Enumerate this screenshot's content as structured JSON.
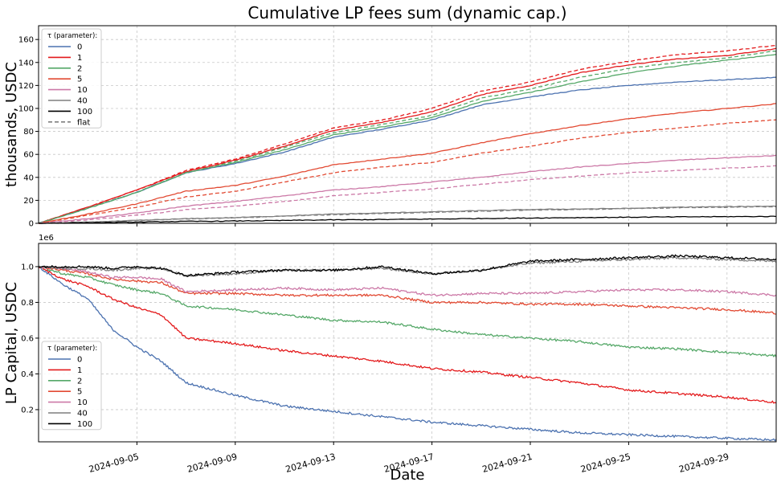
{
  "figure": {
    "title": "Cumulative LP fees sum (dynamic cap.)",
    "xlabel": "Date"
  },
  "colors": {
    "tau_0": "#4c72b0",
    "tau_1": "#e31a1c",
    "tau_2": "#55a868",
    "tau_5": "#e24a33",
    "tau_10": "#cc79a7",
    "tau_40": "#7f7f7f",
    "tau_100": "#000000"
  },
  "chart_data": [
    {
      "id": "fees",
      "type": "line",
      "title": "Cumulative LP fees sum (dynamic cap.)",
      "xlabel": "",
      "ylabel": "thousands, USDC",
      "xlim": [
        "2024-09-01",
        "2024-10-01"
      ],
      "ylim": [
        0,
        172
      ],
      "yticks": [
        0,
        20,
        40,
        60,
        80,
        100,
        120,
        140,
        160
      ],
      "grid": true,
      "legend": {
        "title": "τ (parameter):",
        "position": "top-left"
      },
      "x_dates": [
        "2024-09-01",
        "2024-09-03",
        "2024-09-05",
        "2024-09-07",
        "2024-09-09",
        "2024-09-11",
        "2024-09-13",
        "2024-09-15",
        "2024-09-17",
        "2024-09-19",
        "2024-09-21",
        "2024-09-23",
        "2024-09-25",
        "2024-09-27",
        "2024-09-29",
        "2024-10-01"
      ],
      "series": [
        {
          "name": "0",
          "color_key": "tau_0",
          "style": "solid",
          "values": [
            0,
            13,
            27,
            44,
            52,
            62,
            75,
            82,
            90,
            103,
            110,
            116,
            120,
            123,
            125,
            127
          ]
        },
        {
          "name": "1",
          "color_key": "tau_1",
          "style": "solid",
          "values": [
            0,
            14,
            29,
            45,
            55,
            67,
            81,
            88,
            97,
            112,
            120,
            131,
            138,
            143,
            146,
            152
          ]
        },
        {
          "name": "2",
          "color_key": "tau_2",
          "style": "solid",
          "values": [
            0,
            13,
            27,
            44,
            53,
            64,
            77,
            84,
            92,
            106,
            114,
            123,
            131,
            137,
            142,
            147
          ]
        },
        {
          "name": "5",
          "color_key": "tau_5",
          "style": "solid",
          "values": [
            0,
            8,
            17,
            28,
            33,
            41,
            51,
            56,
            61,
            70,
            78,
            85,
            91,
            96,
            100,
            104
          ]
        },
        {
          "name": "10",
          "color_key": "tau_10",
          "style": "solid",
          "values": [
            0,
            4,
            9,
            15,
            19,
            24,
            29,
            32,
            36,
            40,
            45,
            49,
            52,
            55,
            57,
            59
          ]
        },
        {
          "name": "40",
          "color_key": "tau_40",
          "style": "solid",
          "values": [
            0,
            1,
            2.5,
            4,
            5,
            6.5,
            8,
            9,
            10,
            11,
            12,
            12.5,
            13,
            14,
            14.5,
            15
          ]
        },
        {
          "name": "100",
          "color_key": "tau_100",
          "style": "solid",
          "values": [
            0,
            0.5,
            1,
            1.7,
            2,
            2.5,
            3,
            3.3,
            3.7,
            4.2,
            4.6,
            5,
            5.3,
            5.6,
            5.8,
            6
          ]
        },
        {
          "name": "flat",
          "color_key": "tau_40",
          "style": "dashed",
          "legend_only": true,
          "values": []
        }
      ],
      "flat_series": [
        {
          "name": "1 (flat)",
          "color_key": "tau_1",
          "values": [
            0,
            14,
            29,
            46,
            56,
            69,
            83,
            90,
            100,
            115,
            123,
            134,
            141,
            147,
            150,
            155
          ]
        },
        {
          "name": "2 (flat)",
          "color_key": "tau_2",
          "values": [
            0,
            13,
            27,
            44,
            54,
            66,
            79,
            86,
            94,
            109,
            117,
            127,
            135,
            140,
            144,
            150
          ]
        },
        {
          "name": "5 (flat)",
          "color_key": "tau_5",
          "values": [
            0,
            7,
            14,
            23,
            28,
            36,
            44,
            49,
            53,
            61,
            67,
            74,
            79,
            83,
            87,
            90
          ]
        },
        {
          "name": "10 (flat)",
          "color_key": "tau_10",
          "values": [
            0,
            3,
            7,
            12,
            15,
            19,
            24,
            27,
            30,
            34,
            38,
            41,
            44,
            46,
            48,
            50
          ]
        },
        {
          "name": "40 (flat)",
          "color_key": "tau_40",
          "values": [
            0,
            1,
            2.3,
            3.8,
            4.8,
            6.2,
            7.5,
            8.5,
            9.5,
            10.5,
            11.5,
            12,
            12.8,
            13.5,
            14,
            14.5
          ]
        }
      ]
    },
    {
      "id": "capital",
      "type": "line",
      "title": "",
      "xlabel": "Date",
      "ylabel": "LP Capital, USDC",
      "offset_text": "1e6",
      "xlim": [
        "2024-09-01",
        "2024-10-01"
      ],
      "ylim": [
        0.02,
        1.13
      ],
      "yticks": [
        0.2,
        0.4,
        0.6,
        0.8,
        1.0
      ],
      "ytick_labels": [
        "0.2",
        "0.4",
        "0.6",
        "0.8",
        "1.0"
      ],
      "grid": true,
      "legend": {
        "title": "τ (parameter):",
        "position": "bottom-left"
      },
      "x_dates": [
        "2024-09-01",
        "2024-09-02",
        "2024-09-03",
        "2024-09-04",
        "2024-09-05",
        "2024-09-06",
        "2024-09-07",
        "2024-09-09",
        "2024-09-11",
        "2024-09-13",
        "2024-09-15",
        "2024-09-17",
        "2024-09-19",
        "2024-09-21",
        "2024-09-23",
        "2024-09-25",
        "2024-09-27",
        "2024-09-29",
        "2024-10-01"
      ],
      "series": [
        {
          "name": "0",
          "color_key": "tau_0",
          "values": [
            1.0,
            0.9,
            0.82,
            0.65,
            0.55,
            0.47,
            0.35,
            0.28,
            0.22,
            0.19,
            0.16,
            0.13,
            0.11,
            0.09,
            0.07,
            0.06,
            0.05,
            0.04,
            0.03
          ]
        },
        {
          "name": "1",
          "color_key": "tau_1",
          "values": [
            1.0,
            0.93,
            0.89,
            0.82,
            0.77,
            0.73,
            0.6,
            0.57,
            0.53,
            0.5,
            0.47,
            0.43,
            0.41,
            0.38,
            0.35,
            0.31,
            0.29,
            0.27,
            0.24
          ]
        },
        {
          "name": "2",
          "color_key": "tau_2",
          "values": [
            1.0,
            0.96,
            0.94,
            0.9,
            0.87,
            0.85,
            0.78,
            0.76,
            0.73,
            0.7,
            0.69,
            0.65,
            0.62,
            0.6,
            0.58,
            0.55,
            0.54,
            0.52,
            0.5
          ]
        },
        {
          "name": "5",
          "color_key": "tau_5",
          "values": [
            1.0,
            0.98,
            0.96,
            0.93,
            0.92,
            0.91,
            0.85,
            0.85,
            0.84,
            0.84,
            0.84,
            0.8,
            0.8,
            0.79,
            0.79,
            0.78,
            0.77,
            0.76,
            0.74
          ]
        },
        {
          "name": "10",
          "color_key": "tau_10",
          "values": [
            1.0,
            0.99,
            0.97,
            0.94,
            0.94,
            0.93,
            0.86,
            0.87,
            0.88,
            0.87,
            0.88,
            0.84,
            0.85,
            0.85,
            0.86,
            0.87,
            0.87,
            0.86,
            0.84
          ]
        },
        {
          "name": "40",
          "color_key": "tau_40",
          "values": [
            1.0,
            0.99,
            0.99,
            0.98,
            0.99,
            0.99,
            0.95,
            0.96,
            0.98,
            0.98,
            0.99,
            0.96,
            0.98,
            1.02,
            1.03,
            1.04,
            1.05,
            1.04,
            1.03
          ]
        },
        {
          "name": "100",
          "color_key": "tau_100",
          "values": [
            1.0,
            1.0,
            1.0,
            0.99,
            1.0,
            0.99,
            0.95,
            0.97,
            0.98,
            0.98,
            1.0,
            0.96,
            0.98,
            1.03,
            1.04,
            1.05,
            1.06,
            1.05,
            1.04
          ]
        }
      ]
    }
  ],
  "x_axis": {
    "ticks": [
      "2024-09-05",
      "2024-09-09",
      "2024-09-13",
      "2024-09-17",
      "2024-09-21",
      "2024-09-25",
      "2024-09-29"
    ]
  }
}
